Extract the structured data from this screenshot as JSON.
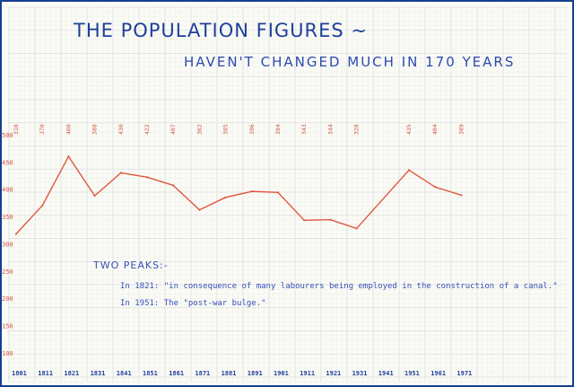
{
  "chart_data": {
    "type": "line",
    "title": "THE POPULATION FIGURES ~",
    "subtitle": "HAVEN'T CHANGED MUCH IN 170 YEARS",
    "xlabel": "",
    "ylabel": "",
    "x": [
      "1801",
      "1811",
      "1821",
      "1831",
      "1841",
      "1851",
      "1861",
      "1871",
      "1881",
      "1891",
      "1901",
      "1911",
      "1921",
      "1931",
      "1941",
      "1951",
      "1961",
      "1971"
    ],
    "series": [
      {
        "values": [
          318,
          370,
          460,
          388,
          430,
          422,
          407,
          362,
          385,
          396,
          394,
          343,
          344,
          328,
          null,
          435,
          404,
          389
        ]
      }
    ],
    "point_labels": [
      "318",
      "370",
      "460",
      "388",
      "430",
      "422",
      "407",
      "362",
      "385",
      "396",
      "394",
      "343",
      "344",
      "328",
      "",
      "435",
      "404",
      "389"
    ],
    "y_ticks": [
      "100",
      "150",
      "200",
      "250",
      "300",
      "350",
      "400",
      "450",
      "500"
    ],
    "ylim": [
      75,
      500
    ],
    "grid": true,
    "line_color": "#e2553e",
    "annotations": {
      "heading": "TWO PEAKS:-",
      "notes": [
        "In 1821: \"in consequence of many labourers being employed in the construction of a canal.\"",
        "In 1951: The \"post-war bulge.\""
      ]
    }
  }
}
